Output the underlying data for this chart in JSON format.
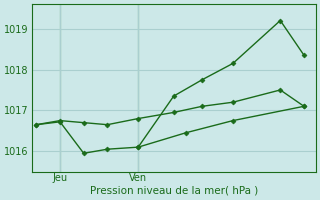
{
  "title": "Pression niveau de la mer( hPa )",
  "background_color": "#cce8e8",
  "grid_color": "#aacfcf",
  "line_color": "#1a6b1a",
  "yticks": [
    1016,
    1017,
    1018,
    1019
  ],
  "ylim": [
    1015.5,
    1019.6
  ],
  "xlim": [
    0,
    12
  ],
  "xtick_positions": [
    1.2,
    4.5
  ],
  "xtick_labels": [
    "Jeu",
    "Ven"
  ],
  "vline_x": [
    1.2,
    4.5
  ],
  "line1_x": [
    0.2,
    1.2,
    2.2,
    3.2,
    4.5,
    6.0,
    7.2,
    8.5,
    10.5,
    11.5
  ],
  "line1_y": [
    1016.65,
    1016.72,
    1015.95,
    1016.05,
    1016.1,
    1017.35,
    1017.75,
    1018.15,
    1019.2,
    1018.35
  ],
  "line2_x": [
    0.2,
    1.2,
    2.2,
    3.2,
    4.5,
    6.0,
    7.2,
    8.5,
    10.5,
    11.5
  ],
  "line2_y": [
    1016.65,
    1016.75,
    1016.7,
    1016.65,
    1016.8,
    1016.95,
    1017.1,
    1017.2,
    1017.5,
    1017.1
  ],
  "line3_x": [
    4.5,
    6.5,
    8.5,
    11.5
  ],
  "line3_y": [
    1016.1,
    1016.45,
    1016.75,
    1017.1
  ],
  "markersize": 2.5,
  "linewidth": 1.0,
  "ylabel_fontsize": 7.5,
  "tick_fontsize": 7
}
